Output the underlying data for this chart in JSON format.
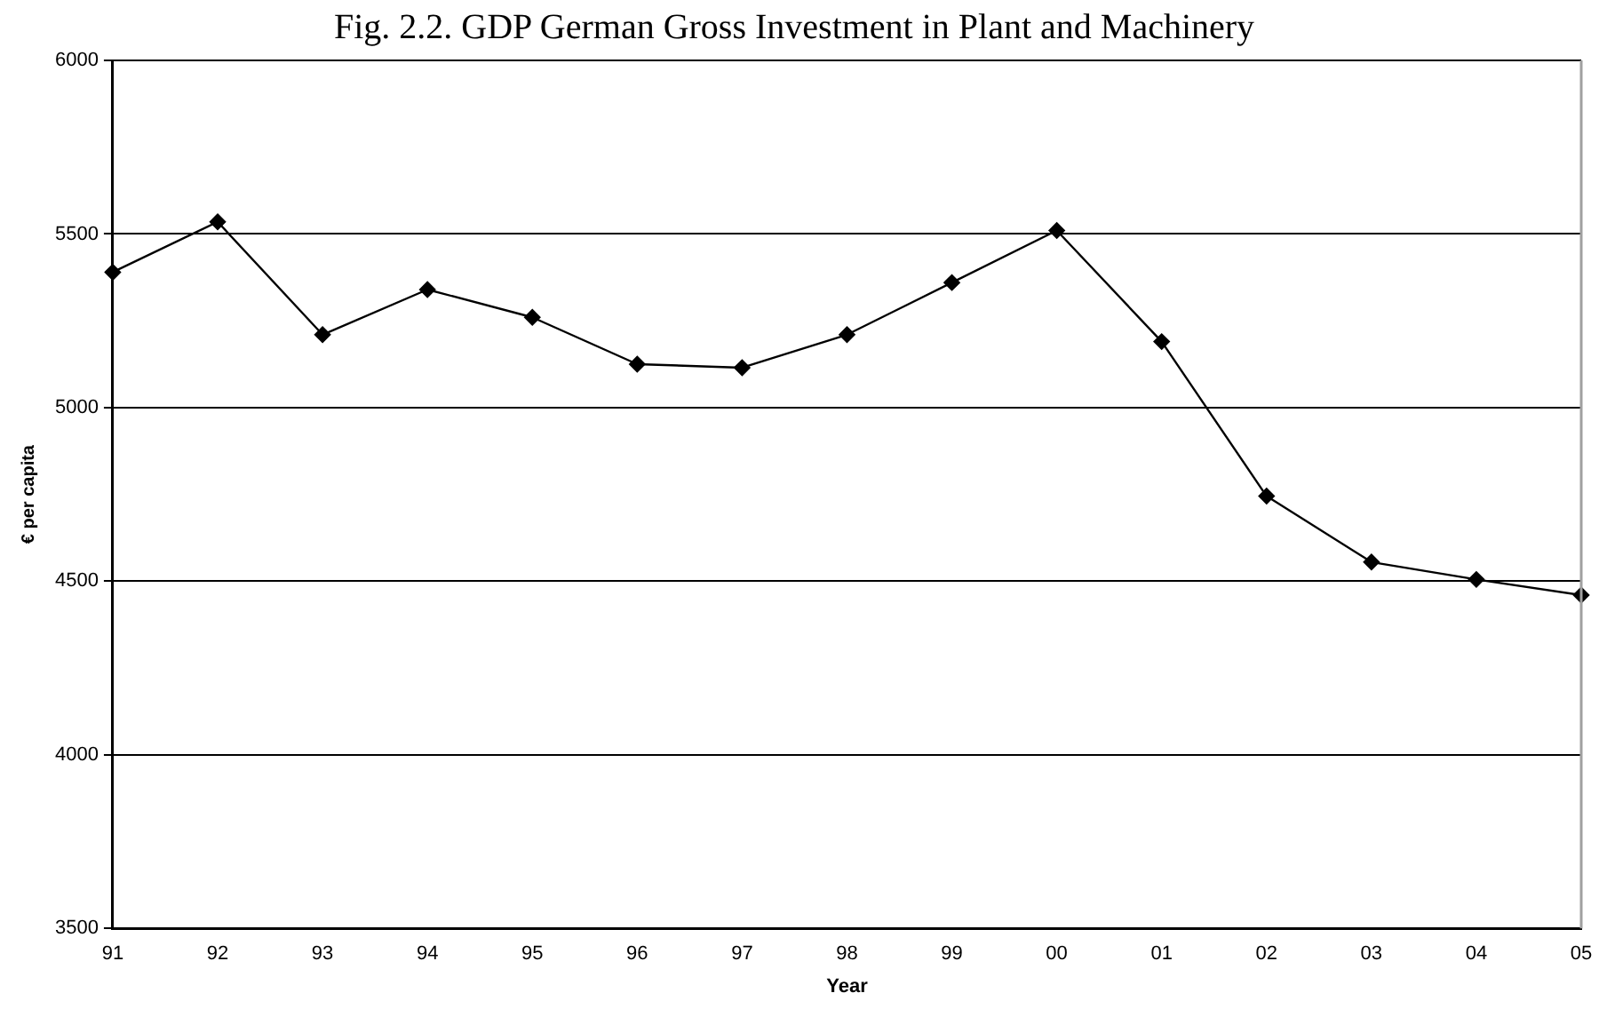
{
  "chart_data": {
    "type": "line",
    "title": "Fig. 2.2. GDP German Gross Investment in Plant and Machinery",
    "xlabel": "Year",
    "ylabel": "€ per capita",
    "categories": [
      "91",
      "92",
      "93",
      "94",
      "95",
      "96",
      "97",
      "98",
      "99",
      "00",
      "01",
      "02",
      "03",
      "04",
      "05"
    ],
    "series": [
      {
        "color": "#000000",
        "values": [
          5390,
          5535,
          5210,
          5340,
          5260,
          5125,
          5115,
          5210,
          5360,
          5510,
          5190,
          4745,
          4555,
          4505,
          4460
        ]
      }
    ],
    "ylim": [
      3500,
      6000
    ],
    "yticks": [
      3500,
      4000,
      4500,
      5000,
      5500,
      6000
    ],
    "grid": "y",
    "legend": false,
    "marker": "diamond",
    "line_style": "solid"
  }
}
